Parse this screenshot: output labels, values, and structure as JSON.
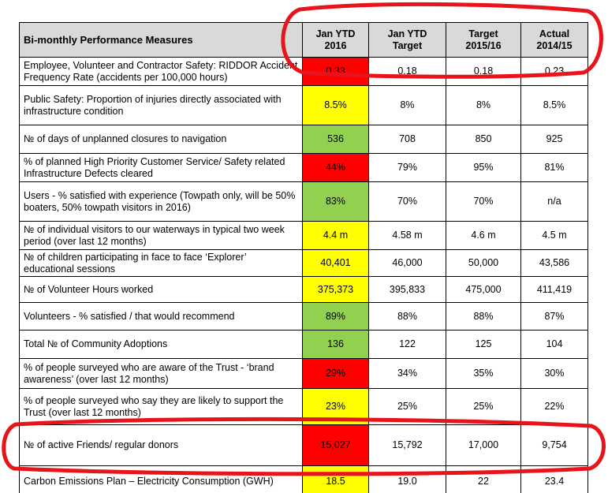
{
  "table": {
    "header": [
      "Bi-monthly Performance Measures",
      "Jan YTD 2016",
      "Jan YTD Target",
      "Target 2015/16",
      "Actual 2014/15"
    ],
    "status_colors": {
      "red": "#ff0000",
      "yellow": "#ffff00",
      "green": "#92d050"
    },
    "rows": [
      {
        "measure": "Employee, Volunteer and Contractor Safety: RIDDOR Accident Frequency Rate (accidents per 100,000 hours)",
        "status": "red",
        "cells": [
          "0.33",
          "0.18",
          "0.18",
          "0.23"
        ]
      },
      {
        "measure": "Public Safety: Proportion of injuries directly associated with infrastructure condition",
        "status": "yellow",
        "cells": [
          "8.5%",
          "8%",
          "8%",
          "8.5%"
        ]
      },
      {
        "measure": "№ of days of unplanned closures to navigation",
        "status": "green",
        "cells": [
          "536",
          "708",
          "850",
          "925"
        ]
      },
      {
        "measure": "% of planned High Priority Customer Service/ Safety related Infrastructure Defects cleared",
        "status": "red",
        "cells": [
          "44%",
          "79%",
          "95%",
          "81%"
        ]
      },
      {
        "measure": "Users - % satisfied with experience (Towpath only, will be 50% boaters, 50% towpath visitors in 2016)",
        "status": "green",
        "cells": [
          "83%",
          "70%",
          "70%",
          "n/a"
        ]
      },
      {
        "measure": "№ of individual visitors to our waterways in typical two week period (over last 12 months)",
        "status": "yellow",
        "cells": [
          "4.4 m",
          "4.58 m",
          "4.6 m",
          "4.5 m"
        ]
      },
      {
        "measure": "№ of children participating in face to face ‘Explorer’ educational sessions",
        "status": "yellow",
        "cells": [
          "40,401",
          "46,000",
          "50,000",
          "43,586"
        ]
      },
      {
        "measure": "№ of Volunteer Hours worked",
        "status": "yellow",
        "cells": [
          "375,373",
          "395,833",
          "475,000",
          "411,419"
        ]
      },
      {
        "measure": "Volunteers - % satisfied / that would recommend",
        "status": "green",
        "cells": [
          "89%",
          "88%",
          "88%",
          "87%"
        ]
      },
      {
        "measure": "Total № of Community Adoptions",
        "status": "green",
        "cells": [
          "136",
          "122",
          "125",
          "104"
        ]
      },
      {
        "measure": "% of people surveyed who are aware of the Trust - ‘brand awareness’ (over last 12 months)",
        "status": "red",
        "cells": [
          "29%",
          "34%",
          "35%",
          "30%"
        ]
      },
      {
        "measure": "% of people surveyed who say they are likely to support the Trust (over last 12 months)",
        "status": "yellow",
        "cells": [
          "23%",
          "25%",
          "25%",
          "22%"
        ]
      },
      {
        "measure": "№ of active Friends/ regular donors",
        "status": "red",
        "cells": [
          "15,027",
          "15,792",
          "17,000",
          "9,754"
        ]
      },
      {
        "measure": "Carbon Emissions Plan – Electricity Consumption (GWH)",
        "status": "yellow",
        "cells": [
          "18.5",
          "19.0",
          "22",
          "23.4"
        ]
      }
    ]
  }
}
